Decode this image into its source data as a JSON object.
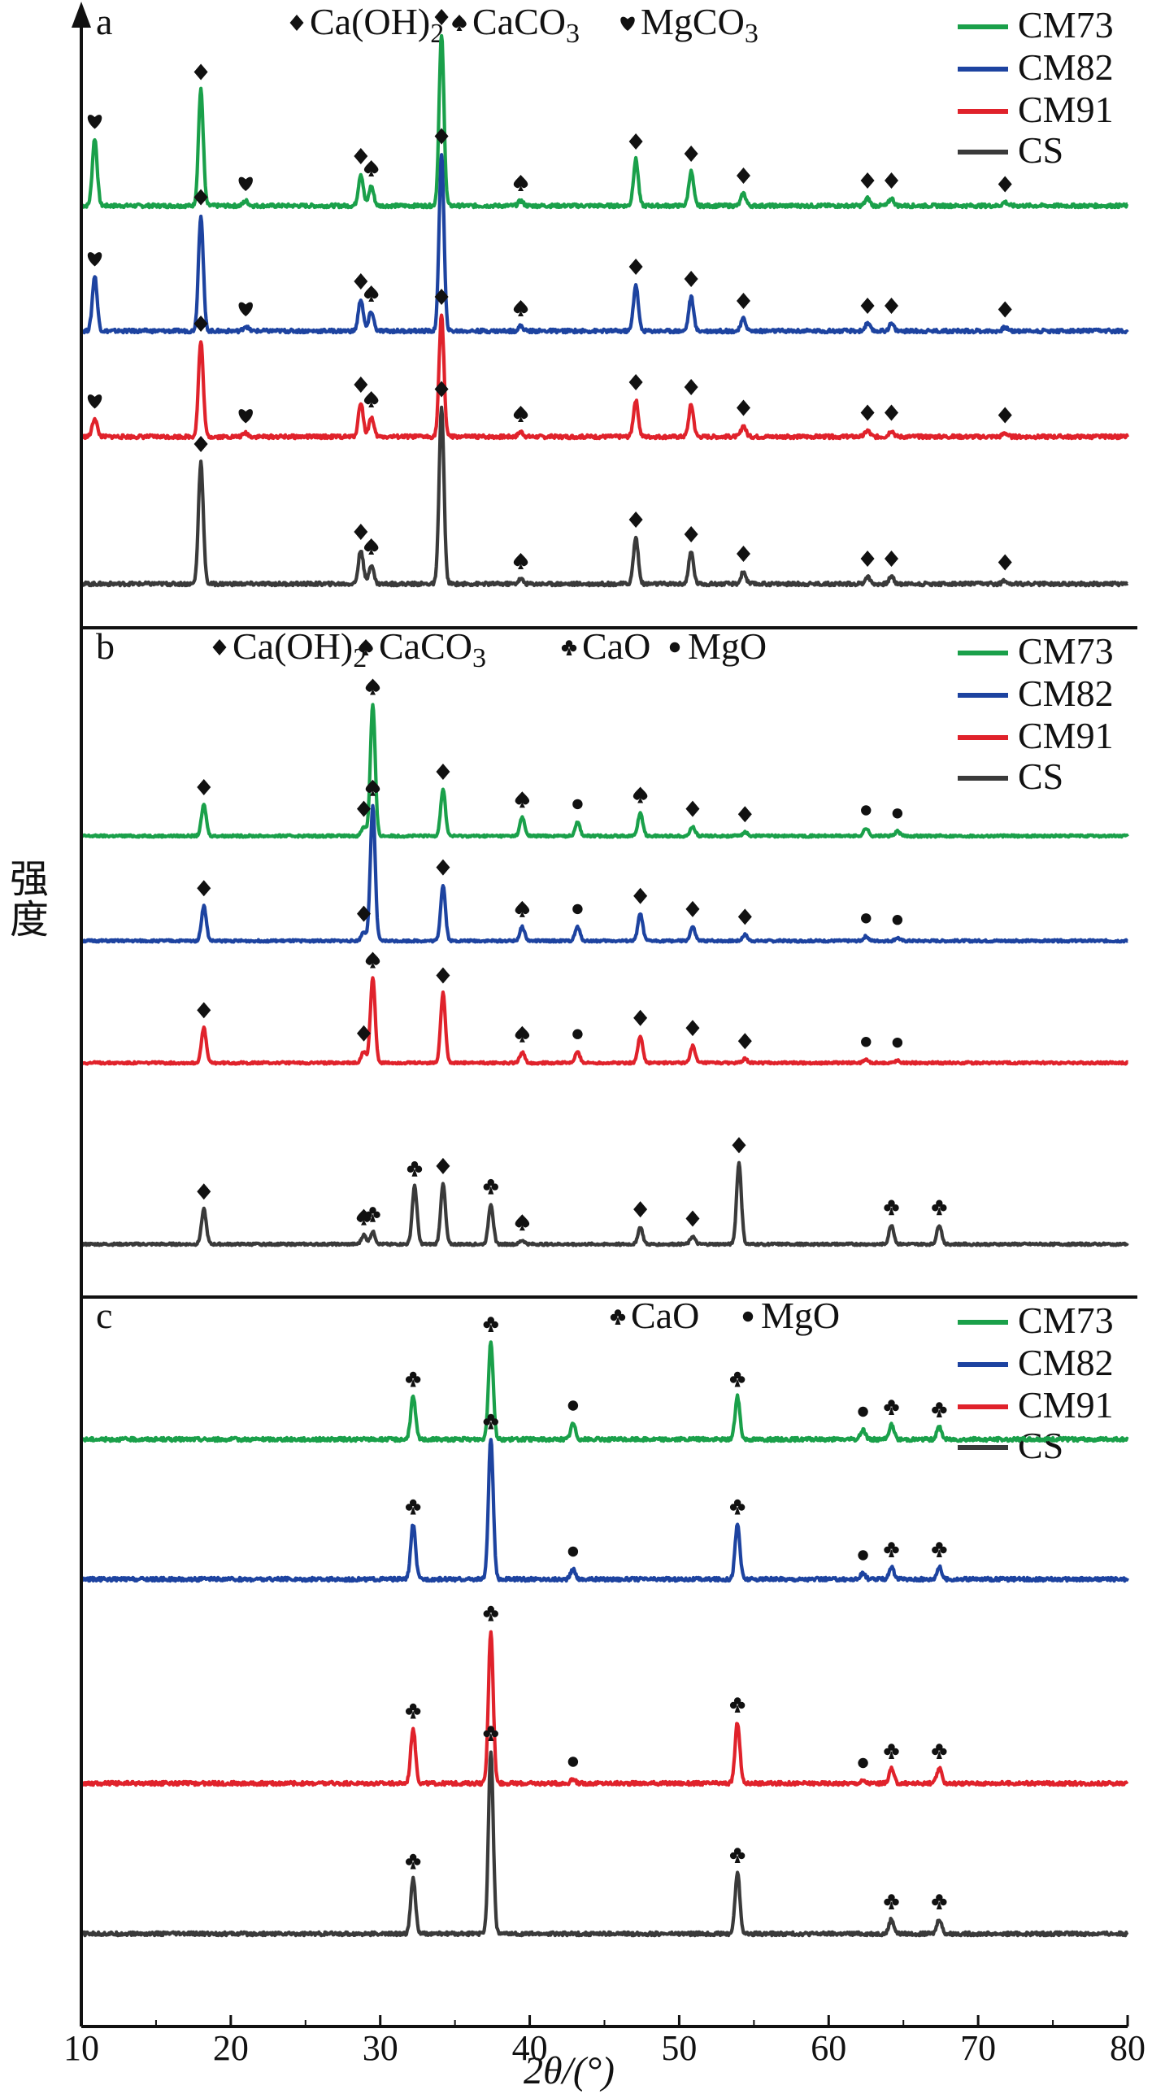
{
  "figure": {
    "ylabel": "强度",
    "xlabel": "2θ/(°)"
  },
  "chart_data": [
    {
      "type": "line",
      "panel": "a",
      "xlim": [
        10,
        80
      ],
      "xticks": [
        10,
        20,
        30,
        40,
        50,
        60,
        70,
        80
      ],
      "xlabel": "2θ/(°)",
      "ylabel": "强度",
      "legend": {
        "position": "top-right",
        "entries": [
          "CM73",
          "CM82",
          "CM91",
          "CS"
        ]
      },
      "marker_legend": [
        {
          "symbol": "diamond",
          "label": "Ca(OH)₂"
        },
        {
          "symbol": "spade",
          "label": "CaCO₃"
        },
        {
          "symbol": "heart",
          "label": "MgCO₃"
        }
      ],
      "series": [
        {
          "name": "CM73",
          "color": "#1aa04a",
          "peaks": [
            {
              "x": 10.9,
              "h": 0.55,
              "m": "heart"
            },
            {
              "x": 18.0,
              "h": 0.95,
              "m": "diamond"
            },
            {
              "x": 21.0,
              "h": 0.04,
              "m": "heart"
            },
            {
              "x": 28.7,
              "h": 0.26,
              "m": "diamond"
            },
            {
              "x": 29.4,
              "h": 0.16,
              "m": "spade"
            },
            {
              "x": 34.1,
              "h": 1.4,
              "m": "diamond"
            },
            {
              "x": 39.4,
              "h": 0.04,
              "m": "spade"
            },
            {
              "x": 47.1,
              "h": 0.38,
              "m": "diamond"
            },
            {
              "x": 50.8,
              "h": 0.28,
              "m": "diamond"
            },
            {
              "x": 54.3,
              "h": 0.1,
              "m": "diamond"
            },
            {
              "x": 62.6,
              "h": 0.06,
              "m": "diamond"
            },
            {
              "x": 64.2,
              "h": 0.06,
              "m": "diamond"
            },
            {
              "x": 71.8,
              "h": 0.03,
              "m": "diamond"
            }
          ]
        },
        {
          "name": "CM82",
          "color": "#1d43a0",
          "peaks": [
            {
              "x": 10.9,
              "h": 0.45,
              "m": "heart"
            },
            {
              "x": 18.0,
              "h": 0.95,
              "m": "diamond"
            },
            {
              "x": 21.0,
              "h": 0.04,
              "m": "heart"
            },
            {
              "x": 28.7,
              "h": 0.26,
              "m": "diamond"
            },
            {
              "x": 29.4,
              "h": 0.16,
              "m": "spade"
            },
            {
              "x": 34.1,
              "h": 1.45,
              "m": "diamond"
            },
            {
              "x": 39.4,
              "h": 0.04,
              "m": "spade"
            },
            {
              "x": 47.1,
              "h": 0.38,
              "m": "diamond"
            },
            {
              "x": 50.8,
              "h": 0.28,
              "m": "diamond"
            },
            {
              "x": 54.3,
              "h": 0.1,
              "m": "diamond"
            },
            {
              "x": 62.6,
              "h": 0.06,
              "m": "diamond"
            },
            {
              "x": 64.2,
              "h": 0.06,
              "m": "diamond"
            },
            {
              "x": 71.8,
              "h": 0.03,
              "m": "diamond"
            }
          ]
        },
        {
          "name": "CM91",
          "color": "#e0222b",
          "peaks": [
            {
              "x": 10.9,
              "h": 0.15,
              "m": "heart"
            },
            {
              "x": 18.0,
              "h": 0.78,
              "m": "diamond"
            },
            {
              "x": 21.0,
              "h": 0.03,
              "m": "heart"
            },
            {
              "x": 28.7,
              "h": 0.28,
              "m": "diamond"
            },
            {
              "x": 29.4,
              "h": 0.16,
              "m": "spade"
            },
            {
              "x": 34.1,
              "h": 1.0,
              "m": "diamond"
            },
            {
              "x": 39.4,
              "h": 0.04,
              "m": "spade"
            },
            {
              "x": 47.1,
              "h": 0.3,
              "m": "diamond"
            },
            {
              "x": 50.8,
              "h": 0.26,
              "m": "diamond"
            },
            {
              "x": 54.3,
              "h": 0.09,
              "m": "diamond"
            },
            {
              "x": 62.6,
              "h": 0.05,
              "m": "diamond"
            },
            {
              "x": 64.2,
              "h": 0.05,
              "m": "diamond"
            },
            {
              "x": 71.8,
              "h": 0.03,
              "m": "diamond"
            }
          ]
        },
        {
          "name": "CS",
          "color": "#3a3a3a",
          "peaks": [
            {
              "x": 18.0,
              "h": 1.0,
              "m": "diamond"
            },
            {
              "x": 28.7,
              "h": 0.28,
              "m": "diamond"
            },
            {
              "x": 29.4,
              "h": 0.16,
              "m": "spade"
            },
            {
              "x": 34.1,
              "h": 1.45,
              "m": "diamond"
            },
            {
              "x": 39.4,
              "h": 0.04,
              "m": "spade"
            },
            {
              "x": 47.1,
              "h": 0.38,
              "m": "diamond"
            },
            {
              "x": 50.8,
              "h": 0.26,
              "m": "diamond"
            },
            {
              "x": 54.3,
              "h": 0.1,
              "m": "diamond"
            },
            {
              "x": 62.6,
              "h": 0.06,
              "m": "diamond"
            },
            {
              "x": 64.2,
              "h": 0.06,
              "m": "diamond"
            },
            {
              "x": 71.8,
              "h": 0.03,
              "m": "diamond"
            }
          ]
        }
      ]
    },
    {
      "type": "line",
      "panel": "b",
      "xlim": [
        10,
        80
      ],
      "xlabel": "2θ/(°)",
      "ylabel": "强度",
      "legend": {
        "position": "top-right",
        "entries": [
          "CM73",
          "CM82",
          "CM91",
          "CS"
        ]
      },
      "marker_legend": [
        {
          "symbol": "diamond",
          "label": "Ca(OH)₂"
        },
        {
          "symbol": "spade",
          "label": "CaCO₃"
        },
        {
          "symbol": "club",
          "label": "CaO"
        },
        {
          "symbol": "dot",
          "label": "MgO"
        }
      ],
      "series": [
        {
          "name": "CM73",
          "color": "#1aa04a",
          "peaks": [
            {
              "x": 18.2,
              "h": 0.4,
              "m": "diamond"
            },
            {
              "x": 28.9,
              "h": 0.12,
              "m": "diamond"
            },
            {
              "x": 29.5,
              "h": 1.7,
              "m": "spade"
            },
            {
              "x": 34.2,
              "h": 0.6,
              "m": "diamond"
            },
            {
              "x": 39.5,
              "h": 0.24,
              "m": "spade"
            },
            {
              "x": 43.2,
              "h": 0.18,
              "m": "dot"
            },
            {
              "x": 47.4,
              "h": 0.3,
              "m": "spade"
            },
            {
              "x": 50.9,
              "h": 0.12,
              "m": "diamond"
            },
            {
              "x": 54.4,
              "h": 0.05,
              "m": "diamond"
            },
            {
              "x": 62.5,
              "h": 0.1,
              "m": "dot"
            },
            {
              "x": 64.6,
              "h": 0.06,
              "m": "dot"
            }
          ]
        },
        {
          "name": "CM82",
          "color": "#1d43a0",
          "peaks": [
            {
              "x": 18.2,
              "h": 0.45,
              "m": "diamond"
            },
            {
              "x": 28.9,
              "h": 0.12,
              "m": "diamond"
            },
            {
              "x": 29.5,
              "h": 1.75,
              "m": "spade"
            },
            {
              "x": 34.2,
              "h": 0.72,
              "m": "diamond"
            },
            {
              "x": 39.5,
              "h": 0.18,
              "m": "spade"
            },
            {
              "x": 43.2,
              "h": 0.18,
              "m": "dot"
            },
            {
              "x": 47.4,
              "h": 0.35,
              "m": "diamond"
            },
            {
              "x": 50.9,
              "h": 0.18,
              "m": "diamond"
            },
            {
              "x": 54.4,
              "h": 0.08,
              "m": "diamond"
            },
            {
              "x": 62.5,
              "h": 0.06,
              "m": "dot"
            },
            {
              "x": 64.6,
              "h": 0.04,
              "m": "dot"
            }
          ]
        },
        {
          "name": "CM91",
          "color": "#e0222b",
          "peaks": [
            {
              "x": 18.2,
              "h": 0.45,
              "m": "diamond"
            },
            {
              "x": 28.9,
              "h": 0.15,
              "m": "diamond"
            },
            {
              "x": 29.5,
              "h": 1.1,
              "m": "spade"
            },
            {
              "x": 34.2,
              "h": 0.9,
              "m": "diamond"
            },
            {
              "x": 39.5,
              "h": 0.14,
              "m": "spade"
            },
            {
              "x": 43.2,
              "h": 0.14,
              "m": "dot"
            },
            {
              "x": 47.4,
              "h": 0.35,
              "m": "diamond"
            },
            {
              "x": 50.9,
              "h": 0.22,
              "m": "diamond"
            },
            {
              "x": 54.4,
              "h": 0.05,
              "m": "diamond"
            },
            {
              "x": 62.5,
              "h": 0.04,
              "m": "dot"
            },
            {
              "x": 64.6,
              "h": 0.03,
              "m": "dot"
            }
          ]
        },
        {
          "name": "CS",
          "color": "#3a3a3a",
          "peaks": [
            {
              "x": 18.2,
              "h": 0.45,
              "m": "diamond"
            },
            {
              "x": 28.9,
              "h": 0.12,
              "m": "spade"
            },
            {
              "x": 29.5,
              "h": 0.16,
              "m": "club"
            },
            {
              "x": 32.3,
              "h": 0.75,
              "m": "club"
            },
            {
              "x": 34.2,
              "h": 0.78,
              "m": "diamond"
            },
            {
              "x": 37.4,
              "h": 0.52,
              "m": "club"
            },
            {
              "x": 39.5,
              "h": 0.05,
              "m": "spade"
            },
            {
              "x": 47.4,
              "h": 0.22,
              "m": "diamond"
            },
            {
              "x": 50.9,
              "h": 0.1,
              "m": "diamond"
            },
            {
              "x": 54.0,
              "h": 1.05,
              "m": "diamond"
            },
            {
              "x": 64.2,
              "h": 0.25,
              "m": "club"
            },
            {
              "x": 67.4,
              "h": 0.25,
              "m": "club"
            }
          ]
        }
      ]
    },
    {
      "type": "line",
      "panel": "c",
      "xlim": [
        10,
        80
      ],
      "xlabel": "2θ/(°)",
      "ylabel": "强度",
      "legend": {
        "position": "top-right",
        "entries": [
          "CM73",
          "CM82",
          "CM91",
          "CS"
        ]
      },
      "marker_legend": [
        {
          "symbol": "club",
          "label": "CaO"
        },
        {
          "symbol": "dot",
          "label": "MgO"
        }
      ],
      "series": [
        {
          "name": "CM73",
          "color": "#1aa04a",
          "peaks": [
            {
              "x": 32.2,
              "h": 0.35,
              "m": "club"
            },
            {
              "x": 37.4,
              "h": 0.8,
              "m": "club"
            },
            {
              "x": 42.9,
              "h": 0.13,
              "m": "dot"
            },
            {
              "x": 53.9,
              "h": 0.35,
              "m": "club"
            },
            {
              "x": 62.3,
              "h": 0.08,
              "m": "dot"
            },
            {
              "x": 64.2,
              "h": 0.12,
              "m": "club"
            },
            {
              "x": 67.4,
              "h": 0.1,
              "m": "club"
            }
          ]
        },
        {
          "name": "CM82",
          "color": "#1d43a0",
          "peaks": [
            {
              "x": 32.2,
              "h": 0.45,
              "m": "club"
            },
            {
              "x": 37.4,
              "h": 1.15,
              "m": "club"
            },
            {
              "x": 42.9,
              "h": 0.08,
              "m": "dot"
            },
            {
              "x": 53.9,
              "h": 0.45,
              "m": "club"
            },
            {
              "x": 62.3,
              "h": 0.05,
              "m": "dot"
            },
            {
              "x": 64.2,
              "h": 0.1,
              "m": "club"
            },
            {
              "x": 67.4,
              "h": 0.1,
              "m": "club"
            }
          ]
        },
        {
          "name": "CM91",
          "color": "#e0222b",
          "peaks": [
            {
              "x": 32.2,
              "h": 0.45,
              "m": "club"
            },
            {
              "x": 37.4,
              "h": 1.25,
              "m": "club"
            },
            {
              "x": 42.9,
              "h": 0.03,
              "m": "dot"
            },
            {
              "x": 53.9,
              "h": 0.5,
              "m": "club"
            },
            {
              "x": 62.3,
              "h": 0.02,
              "m": "dot"
            },
            {
              "x": 64.2,
              "h": 0.12,
              "m": "club"
            },
            {
              "x": 67.4,
              "h": 0.12,
              "m": "club"
            }
          ]
        },
        {
          "name": "CS",
          "color": "#3a3a3a",
          "peaks": [
            {
              "x": 32.2,
              "h": 0.45,
              "m": "club"
            },
            {
              "x": 37.4,
              "h": 1.5,
              "m": "club"
            },
            {
              "x": 53.9,
              "h": 0.5,
              "m": "club"
            },
            {
              "x": 64.2,
              "h": 0.12,
              "m": "club"
            },
            {
              "x": 67.4,
              "h": 0.12,
              "m": "club"
            }
          ]
        }
      ]
    }
  ]
}
